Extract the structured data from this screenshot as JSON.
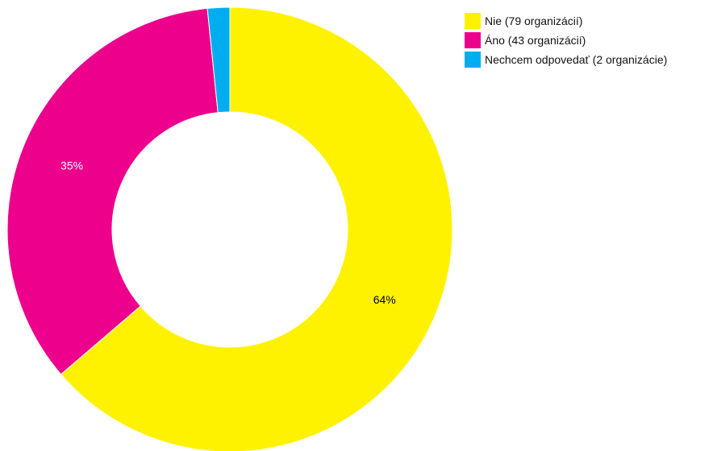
{
  "chart_data": {
    "type": "pie",
    "donut": true,
    "legend_position": "top-right",
    "slices": [
      {
        "label": "Nie (79 organizácií)",
        "value": 79,
        "percent_label": "64%",
        "color": "#fff200",
        "label_color": "#000000"
      },
      {
        "label": "Áno (43 organizácií)",
        "value": 43,
        "percent_label": "35%",
        "color": "#ec008c",
        "label_color": "#ffffff"
      },
      {
        "label": "Nechcem odpovedať (2 organizácie)",
        "value": 2,
        "percent_label": "",
        "color": "#00aeef",
        "label_color": "#ffffff"
      }
    ]
  }
}
